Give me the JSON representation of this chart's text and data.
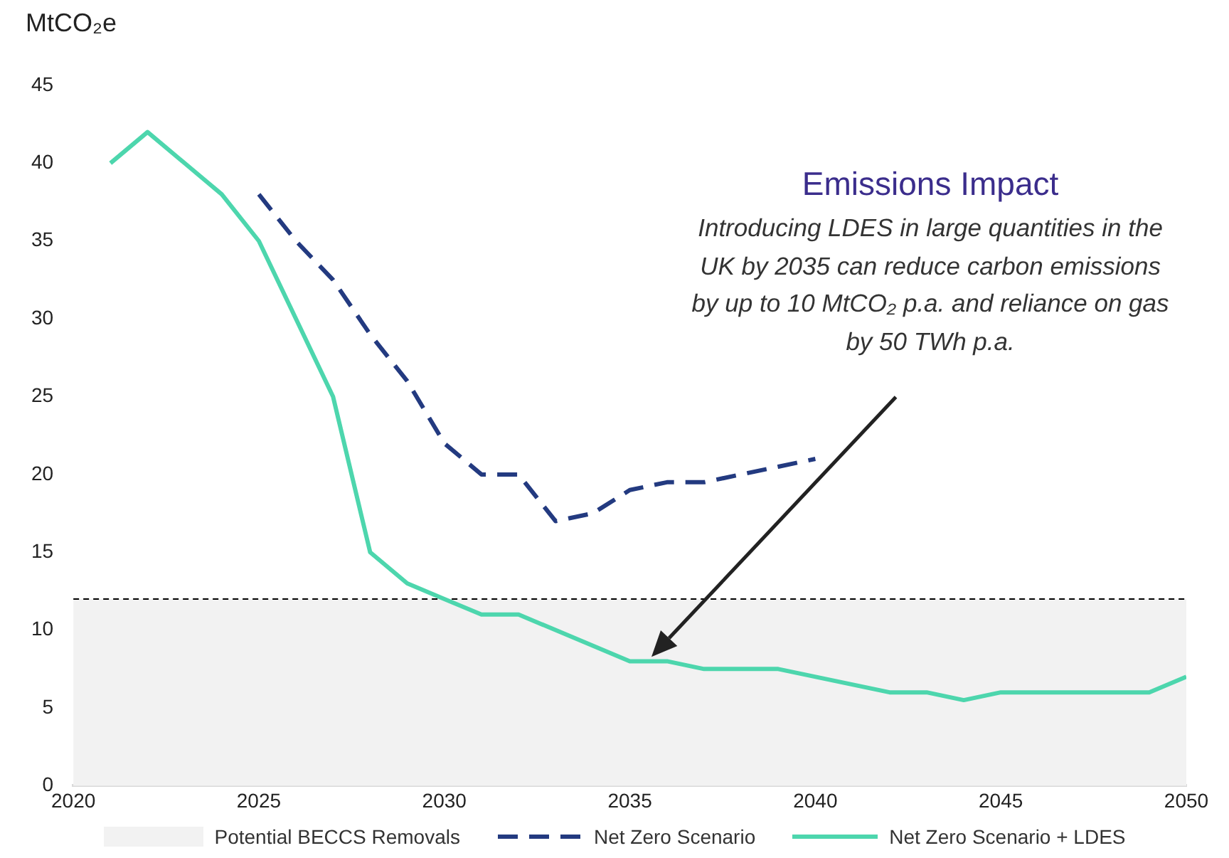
{
  "chart_data": {
    "type": "line",
    "ylabel": "MtCO₂e",
    "annotations": [
      "Emissions Impact",
      {
        "text": "Introducing LDES in large quantities in the UK by 2035 can reduce carbon emissions by up to 10 MtCO₂ p.a. and reliance on gas by 50 TWh p.a."
      }
    ],
    "series": [
      {
        "name": "Net Zero Scenario",
        "color": "#233a80",
        "line_style": "dashed",
        "x": [
          2025,
          2026,
          2027,
          2028,
          2029,
          2030,
          2031,
          2032,
          2033,
          2034,
          2035,
          2036,
          2037,
          2038,
          2039,
          2040
        ],
        "values": [
          38,
          35,
          32.5,
          29,
          26,
          22,
          20,
          20,
          17,
          17.5,
          19,
          19.5,
          19.5,
          20,
          20.5,
          21
        ]
      },
      {
        "name": "Net Zero Scenario + LDES",
        "color": "#4dd6ad",
        "line_style": "solid",
        "x": [
          2021,
          2022,
          2024,
          2025,
          2027,
          2028,
          2029,
          2030,
          2031,
          2032,
          2035,
          2036,
          2037,
          2039,
          2042,
          2043,
          2044,
          2045,
          2049,
          2050
        ],
        "values": [
          40,
          42,
          38,
          35,
          25,
          15,
          13,
          12,
          11,
          11,
          8,
          8,
          7.5,
          7.5,
          6,
          6,
          5.5,
          6,
          6,
          7
        ]
      }
    ],
    "bands": [
      {
        "axis": "y",
        "from": 0,
        "to": 12,
        "label": "Potential BECCS Removals",
        "color": "#f2f2f2"
      }
    ],
    "ref_lines": [
      {
        "axis": "y",
        "value": 12,
        "color": "#000000",
        "line_style": "dashed"
      }
    ],
    "xlim": [
      2020,
      2050
    ],
    "xticks": [
      2020,
      2025,
      2030,
      2035,
      2040,
      2045,
      2050
    ],
    "ylim": [
      0,
      45
    ],
    "yticks": [
      0,
      5,
      10,
      15,
      20,
      25,
      30,
      35,
      40,
      45
    ],
    "grid": false,
    "legend": "bottom",
    "marker": "none"
  }
}
